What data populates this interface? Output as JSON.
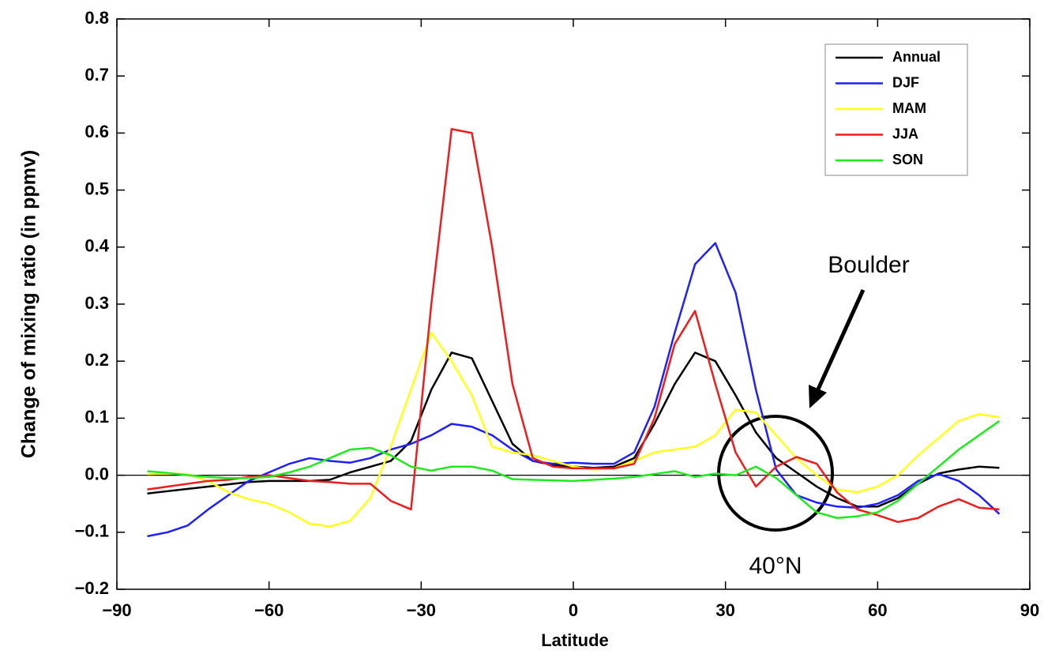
{
  "chart_data": {
    "type": "line",
    "x_label": "Latitude",
    "y_label": "Change of mixing ratio (in ppmv)",
    "annotations": [
      "Boulder",
      "40°N"
    ],
    "x": [
      -84,
      -80,
      -76,
      -72,
      -68,
      -64,
      -60,
      -56,
      -52,
      -48,
      -44,
      -40,
      -36,
      -32,
      -28,
      -24,
      -20,
      -16,
      -12,
      -8,
      -4,
      0,
      4,
      8,
      12,
      16,
      20,
      24,
      28,
      32,
      36,
      40,
      44,
      48,
      52,
      56,
      60,
      64,
      68,
      72,
      76,
      80,
      84
    ],
    "series": [
      {
        "name": "Annual",
        "color": "#000000",
        "values": [
          -0.032,
          -0.028,
          -0.024,
          -0.02,
          -0.016,
          -0.012,
          -0.01,
          -0.01,
          -0.01,
          -0.008,
          0.005,
          0.015,
          0.025,
          0.06,
          0.15,
          0.215,
          0.205,
          0.13,
          0.055,
          0.025,
          0.018,
          0.015,
          0.013,
          0.015,
          0.03,
          0.09,
          0.16,
          0.215,
          0.2,
          0.14,
          0.075,
          0.03,
          0.005,
          -0.02,
          -0.04,
          -0.055,
          -0.055,
          -0.04,
          -0.015,
          0.003,
          0.01,
          0.015,
          0.013
        ]
      },
      {
        "name": "DJF",
        "color": "#1f1fff",
        "values": [
          -0.107,
          -0.1,
          -0.088,
          -0.06,
          -0.035,
          -0.01,
          0.005,
          0.02,
          0.03,
          0.025,
          0.022,
          0.03,
          0.045,
          0.055,
          0.07,
          0.09,
          0.085,
          0.07,
          0.045,
          0.025,
          0.02,
          0.022,
          0.02,
          0.02,
          0.04,
          0.12,
          0.25,
          0.37,
          0.407,
          0.32,
          0.15,
          0.01,
          -0.035,
          -0.048,
          -0.055,
          -0.057,
          -0.05,
          -0.035,
          -0.01,
          0.002,
          -0.01,
          -0.035,
          -0.068
        ]
      },
      {
        "name": "MAM",
        "color": "#ffff1a",
        "values": [
          0.002,
          0.003,
          0.002,
          -0.01,
          -0.03,
          -0.042,
          -0.05,
          -0.065,
          -0.085,
          -0.09,
          -0.08,
          -0.04,
          0.05,
          0.15,
          0.25,
          0.2,
          0.14,
          0.05,
          0.04,
          0.035,
          0.025,
          0.015,
          0.01,
          0.012,
          0.025,
          0.04,
          0.045,
          0.05,
          0.07,
          0.115,
          0.11,
          0.07,
          0.03,
          0.0,
          -0.025,
          -0.03,
          -0.02,
          0.0,
          0.035,
          0.065,
          0.095,
          0.107,
          0.102
        ]
      },
      {
        "name": "JJA",
        "color": "#ee1c1c",
        "values": [
          -0.025,
          -0.02,
          -0.015,
          -0.01,
          -0.008,
          -0.003,
          0.0,
          -0.005,
          -0.01,
          -0.012,
          -0.015,
          -0.015,
          -0.045,
          -0.06,
          0.3,
          0.607,
          0.6,
          0.4,
          0.16,
          0.03,
          0.015,
          0.012,
          0.012,
          0.012,
          0.02,
          0.1,
          0.23,
          0.288,
          0.16,
          0.04,
          -0.02,
          0.015,
          0.032,
          0.02,
          -0.03,
          -0.06,
          -0.07,
          -0.082,
          -0.075,
          -0.055,
          -0.042,
          -0.057,
          -0.06
        ]
      },
      {
        "name": "SON",
        "color": "#1eea1e",
        "values": [
          0.007,
          0.004,
          0.0,
          -0.003,
          -0.005,
          -0.005,
          -0.003,
          0.005,
          0.015,
          0.03,
          0.045,
          0.048,
          0.035,
          0.015,
          0.008,
          0.015,
          0.015,
          0.008,
          -0.007,
          -0.008,
          -0.009,
          -0.01,
          -0.008,
          -0.006,
          -0.003,
          0.002,
          0.007,
          -0.003,
          0.003,
          0.0,
          0.015,
          -0.005,
          -0.035,
          -0.065,
          -0.075,
          -0.072,
          -0.065,
          -0.045,
          -0.015,
          0.015,
          0.045,
          0.07,
          0.095
        ]
      }
    ],
    "xlim": [
      -90,
      90
    ],
    "xticks": [
      {
        "value": -90,
        "label": "−90"
      },
      {
        "value": -60,
        "label": "−60"
      },
      {
        "value": -30,
        "label": "−30"
      },
      0,
      30,
      60,
      90
    ],
    "ylim": [
      -0.2,
      0.8
    ],
    "yticks": [
      {
        "value": -0.2,
        "label": "−0.2"
      },
      {
        "value": -0.1,
        "label": "−0.1"
      },
      {
        "value": 0,
        "label": "0.0"
      },
      {
        "value": 0.1,
        "label": "0.1"
      },
      {
        "value": 0.2,
        "label": "0.2"
      },
      {
        "value": 0.3,
        "label": "0.3"
      },
      {
        "value": 0.4,
        "label": "0.4"
      },
      {
        "value": 0.5,
        "label": "0.5"
      },
      {
        "value": 0.6,
        "label": "0.6"
      },
      {
        "value": 0.7,
        "label": "0.7"
      },
      {
        "value": 0.8,
        "label": "0.8"
      }
    ],
    "zero_line": true,
    "legend": "upper right"
  }
}
